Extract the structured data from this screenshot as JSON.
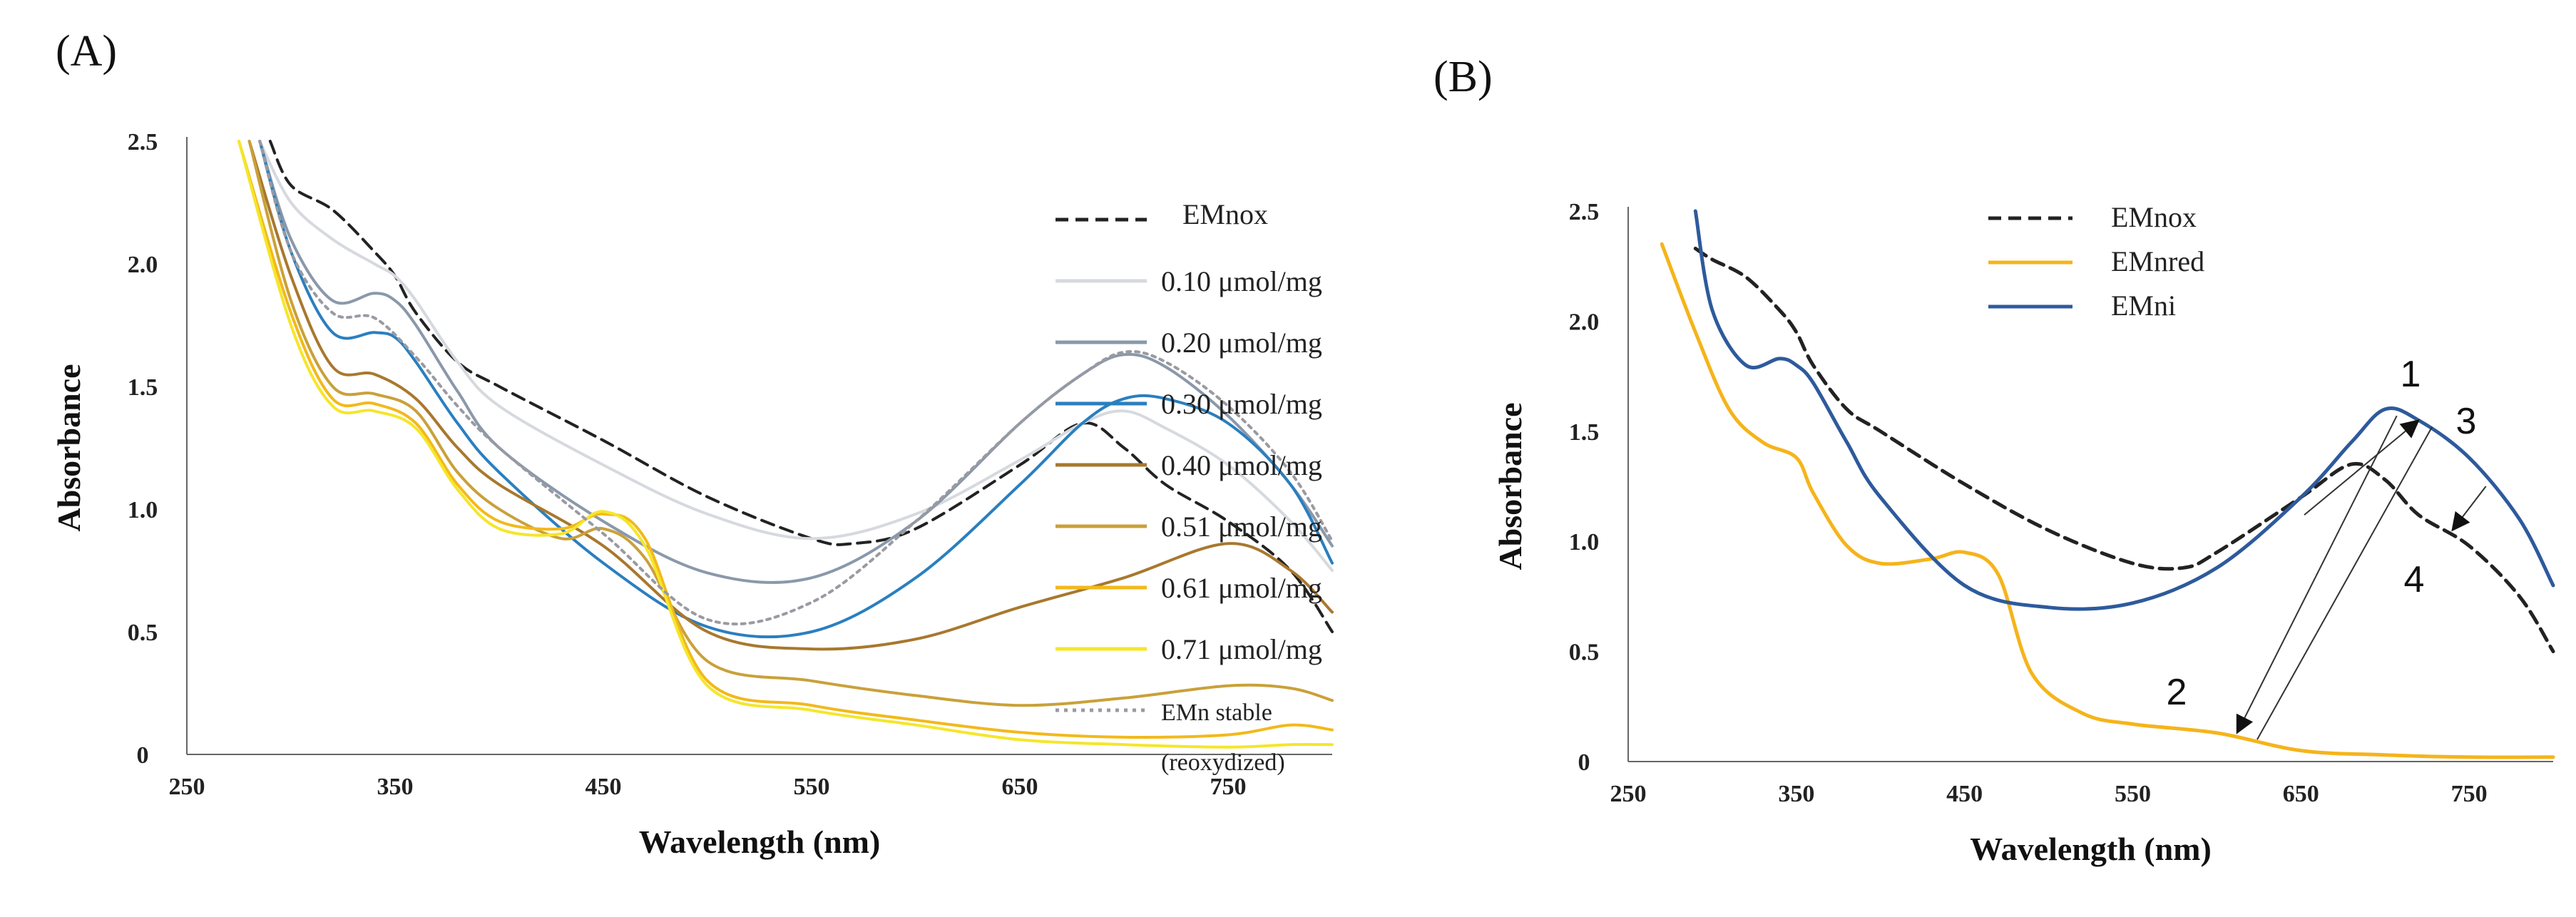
{
  "chart_data": [
    {
      "panel": "(A)",
      "type": "line",
      "xlabel": "Wavelength (nm)",
      "ylabel": "Absorbance",
      "xlim": [
        250,
        800
      ],
      "ylim": [
        0,
        2.5
      ],
      "xticks": [
        250,
        350,
        450,
        550,
        650,
        750
      ],
      "yticks": [
        0,
        0.5,
        1.0,
        1.5,
        2.0,
        2.5
      ],
      "ytick_labels": [
        "0",
        "0.5",
        "1.0",
        "1.5",
        "2.0",
        "2.5"
      ],
      "legend_position": "right",
      "series": [
        {
          "name": "EMnox",
          "color": "#222222",
          "style": "dashed",
          "width": 4,
          "x": [
            290,
            300,
            320,
            340,
            350,
            360,
            380,
            400,
            450,
            500,
            550,
            570,
            600,
            650,
            680,
            700,
            720,
            750,
            780,
            800
          ],
          "y": [
            2.5,
            2.32,
            2.22,
            2.05,
            1.95,
            1.8,
            1.6,
            1.5,
            1.28,
            1.05,
            0.88,
            0.86,
            0.92,
            1.18,
            1.35,
            1.25,
            1.1,
            0.95,
            0.75,
            0.5
          ]
        },
        {
          "name": "0.10 μmol/mg",
          "color": "#d6d9de",
          "style": "solid",
          "width": 4,
          "x": [
            285,
            300,
            320,
            340,
            350,
            360,
            380,
            400,
            450,
            500,
            550,
            600,
            650,
            680,
            700,
            720,
            750,
            780,
            800
          ],
          "y": [
            2.5,
            2.25,
            2.1,
            2.0,
            1.95,
            1.85,
            1.6,
            1.42,
            1.18,
            0.98,
            0.88,
            0.98,
            1.2,
            1.35,
            1.4,
            1.33,
            1.18,
            0.95,
            0.75
          ]
        },
        {
          "name": "0.20 μmol/mg",
          "color": "#8a98aa",
          "style": "solid",
          "width": 4,
          "x": [
            285,
            300,
            320,
            340,
            350,
            360,
            380,
            400,
            450,
            500,
            550,
            600,
            650,
            680,
            700,
            720,
            750,
            780,
            800
          ],
          "y": [
            2.5,
            2.1,
            1.85,
            1.88,
            1.85,
            1.75,
            1.48,
            1.25,
            0.95,
            0.74,
            0.72,
            0.95,
            1.35,
            1.55,
            1.63,
            1.58,
            1.38,
            1.1,
            0.85
          ]
        },
        {
          "name": "0.30 μmol/mg",
          "color": "#2a7fbf",
          "style": "solid",
          "width": 4,
          "x": [
            285,
            300,
            320,
            340,
            350,
            360,
            380,
            400,
            450,
            500,
            550,
            600,
            650,
            680,
            700,
            720,
            750,
            780,
            800
          ],
          "y": [
            2.5,
            2.05,
            1.72,
            1.72,
            1.7,
            1.6,
            1.35,
            1.15,
            0.78,
            0.52,
            0.5,
            0.72,
            1.1,
            1.35,
            1.45,
            1.45,
            1.35,
            1.1,
            0.78
          ]
        },
        {
          "name": "0.40 μmol/mg",
          "color": "#a8782e",
          "style": "solid",
          "width": 4,
          "x": [
            280,
            300,
            320,
            340,
            360,
            380,
            400,
            450,
            500,
            550,
            600,
            650,
            700,
            750,
            780,
            800
          ],
          "y": [
            2.5,
            1.95,
            1.58,
            1.55,
            1.45,
            1.25,
            1.1,
            0.85,
            0.5,
            0.43,
            0.47,
            0.6,
            0.72,
            0.86,
            0.75,
            0.58
          ]
        },
        {
          "name": "0.51 μmol/mg",
          "color": "#c9a13a",
          "style": "solid",
          "width": 4,
          "x": [
            280,
            300,
            320,
            340,
            360,
            380,
            400,
            430,
            450,
            470,
            500,
            550,
            600,
            650,
            700,
            750,
            780,
            800
          ],
          "y": [
            2.5,
            1.85,
            1.5,
            1.47,
            1.4,
            1.15,
            1.0,
            0.88,
            0.92,
            0.8,
            0.38,
            0.3,
            0.24,
            0.2,
            0.23,
            0.28,
            0.27,
            0.22
          ]
        },
        {
          "name": "0.61 μmol/mg",
          "color": "#f2b91b",
          "style": "solid",
          "width": 4,
          "x": [
            275,
            300,
            320,
            340,
            360,
            380,
            400,
            430,
            450,
            470,
            500,
            550,
            600,
            650,
            700,
            750,
            780,
            800
          ],
          "y": [
            2.5,
            1.8,
            1.45,
            1.43,
            1.35,
            1.1,
            0.95,
            0.92,
            0.98,
            0.88,
            0.3,
            0.2,
            0.14,
            0.09,
            0.07,
            0.08,
            0.12,
            0.1
          ]
        },
        {
          "name": "0.71 μmol/mg",
          "color": "#f5e62a",
          "style": "solid",
          "width": 4,
          "x": [
            275,
            300,
            320,
            340,
            360,
            380,
            400,
            430,
            450,
            470,
            500,
            550,
            600,
            650,
            700,
            750,
            780,
            800
          ],
          "y": [
            2.5,
            1.75,
            1.42,
            1.4,
            1.33,
            1.08,
            0.92,
            0.9,
            0.99,
            0.85,
            0.28,
            0.18,
            0.12,
            0.06,
            0.04,
            0.03,
            0.04,
            0.04
          ]
        },
        {
          "name": "EMn stable",
          "name2": "(reoxydized)",
          "color": "#9a9aa2",
          "style": "dotted",
          "width": 4,
          "x": [
            285,
            300,
            320,
            340,
            360,
            380,
            400,
            450,
            500,
            550,
            600,
            650,
            680,
            700,
            720,
            750,
            780,
            800
          ],
          "y": [
            2.5,
            2.05,
            1.8,
            1.78,
            1.62,
            1.42,
            1.25,
            0.9,
            0.55,
            0.62,
            0.95,
            1.35,
            1.55,
            1.64,
            1.6,
            1.42,
            1.15,
            0.87
          ]
        }
      ]
    },
    {
      "panel": "(B)",
      "type": "line",
      "xlabel": "Wavelength (nm)",
      "ylabel": "Absorbance",
      "xlim": [
        250,
        800
      ],
      "ylim": [
        0,
        2.5
      ],
      "xticks": [
        250,
        350,
        450,
        550,
        650,
        750
      ],
      "yticks": [
        0,
        0.5,
        1.0,
        1.5,
        2.0,
        2.5
      ],
      "ytick_labels": [
        "0",
        "0.5",
        "1.0",
        "1.5",
        "2.0",
        "2.5"
      ],
      "legend_position": "top-center",
      "series": [
        {
          "name": "EMnox",
          "color": "#222222",
          "style": "dashed",
          "width": 5,
          "x": [
            290,
            300,
            320,
            340,
            350,
            360,
            380,
            400,
            450,
            500,
            550,
            580,
            600,
            650,
            680,
            700,
            720,
            750,
            780,
            800
          ],
          "y": [
            2.33,
            2.28,
            2.2,
            2.05,
            1.95,
            1.8,
            1.6,
            1.5,
            1.26,
            1.05,
            0.9,
            0.88,
            0.95,
            1.2,
            1.35,
            1.28,
            1.12,
            0.98,
            0.75,
            0.5
          ]
        },
        {
          "name": "EMnred",
          "color": "#f5b41b",
          "style": "solid",
          "width": 5,
          "x": [
            270,
            290,
            310,
            330,
            350,
            360,
            380,
            400,
            430,
            450,
            470,
            490,
            520,
            550,
            600,
            650,
            700,
            750,
            800
          ],
          "y": [
            2.35,
            1.95,
            1.6,
            1.45,
            1.38,
            1.22,
            0.98,
            0.9,
            0.92,
            0.95,
            0.85,
            0.4,
            0.22,
            0.17,
            0.13,
            0.05,
            0.03,
            0.02,
            0.02
          ]
        },
        {
          "name": "EMni",
          "color": "#2e5a9c",
          "style": "solid",
          "width": 5,
          "x": [
            290,
            300,
            320,
            340,
            350,
            360,
            380,
            400,
            450,
            500,
            550,
            600,
            650,
            680,
            700,
            720,
            750,
            780,
            800
          ],
          "y": [
            2.5,
            2.05,
            1.8,
            1.83,
            1.8,
            1.72,
            1.45,
            1.2,
            0.8,
            0.7,
            0.72,
            0.88,
            1.2,
            1.45,
            1.6,
            1.55,
            1.38,
            1.1,
            0.8
          ]
        }
      ],
      "arrows": [
        {
          "from": [
            612,
            0.13
          ],
          "to": [
            707,
            1.57
          ],
          "head": "start"
        },
        {
          "from": [
            624,
            0.1
          ],
          "to": [
            728,
            1.52
          ],
          "head": "none"
        },
        {
          "from": [
            652,
            1.12
          ],
          "to": [
            720,
            1.55
          ],
          "head": "end"
        },
        {
          "from": [
            740,
            1.05
          ],
          "to": [
            760,
            1.25
          ],
          "head": "start"
        }
      ],
      "annotations": [
        "1",
        "2",
        "3",
        "4"
      ]
    }
  ],
  "legend_a_marker_names": [
    "EMnox",
    "0.10 μmol/mg",
    "0.20 μmol/mg",
    "0.30 μmol/mg",
    "0.40 μmol/mg",
    "0.51 μmol/mg",
    "0.61 μmol/mg",
    "0.71 μmol/mg",
    "EMn stable"
  ]
}
